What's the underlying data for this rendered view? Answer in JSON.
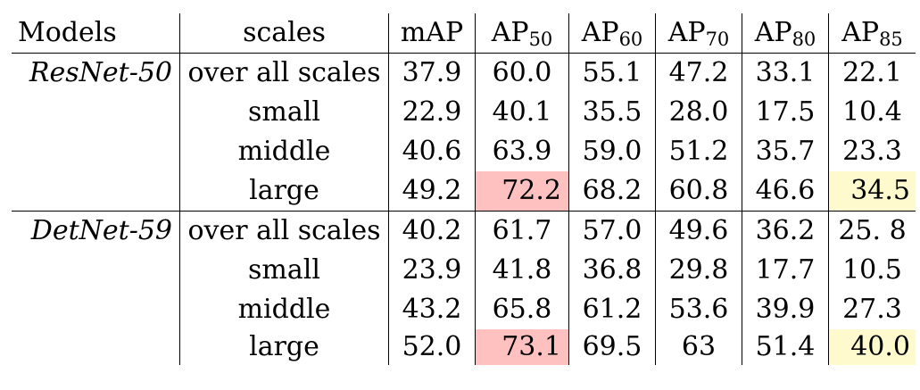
{
  "table": {
    "headers": [
      {
        "label": "Models"
      },
      {
        "label": "scales"
      },
      {
        "label": "mAP"
      },
      {
        "label": "AP",
        "sub": "50"
      },
      {
        "label": "AP",
        "sub": "60"
      },
      {
        "label": "AP",
        "sub": "70"
      },
      {
        "label": "AP",
        "sub": "80"
      },
      {
        "label": "AP",
        "sub": "85"
      }
    ],
    "groups": [
      {
        "model": "ResNet-50",
        "rows": [
          {
            "scale": "over all scales",
            "values": [
              "37.9",
              "60.0",
              "55.1",
              "47.2",
              "33.1",
              "22.1"
            ]
          },
          {
            "scale": "small",
            "values": [
              "22.9",
              "40.1",
              "35.5",
              "28.0",
              "17.5",
              "10.4"
            ]
          },
          {
            "scale": "middle",
            "values": [
              "40.6",
              "63.9",
              "59.0",
              "51.2",
              "35.7",
              "23.3"
            ]
          },
          {
            "scale": "large",
            "values": [
              "49.2",
              "72.2",
              "68.2",
              "60.8",
              "46.6",
              "34.5"
            ]
          }
        ]
      },
      {
        "model": "DetNet-59",
        "rows": [
          {
            "scale": "over all scales",
            "values": [
              "40.2",
              "61.7",
              "57.0",
              "49.6",
              "36.2",
              "25. 8"
            ]
          },
          {
            "scale": "small",
            "values": [
              "23.9",
              "41.8",
              "36.8",
              "29.8",
              "17.7",
              "10.5"
            ]
          },
          {
            "scale": "middle",
            "values": [
              "43.2",
              "65.8",
              "61.2",
              "53.6",
              "39.9",
              "27.3"
            ]
          },
          {
            "scale": "large",
            "values": [
              "52.0",
              "73.1",
              "69.5",
              "63",
              "51.4",
              "40.0"
            ]
          }
        ]
      }
    ],
    "highlight_colors": {
      "red": "#ffc0c0",
      "yellow": "#fffacd"
    }
  }
}
